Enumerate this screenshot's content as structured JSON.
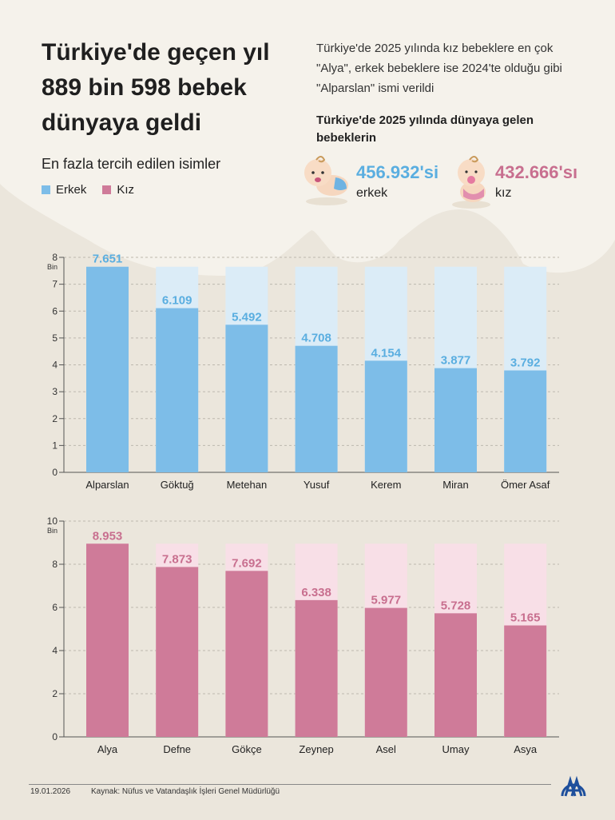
{
  "header": {
    "title": "Türkiye'de geçen yıl 889 bin 598 bebek dünyaya geldi",
    "intro": "Türkiye'de 2025 yılında kız bebeklere en çok \"Alya\", erkek bebeklere ise 2024'te olduğu gibi \"Alparslan\" ismi verildi",
    "subtitle": "Türkiye'de 2025 yılında dünyaya gelen bebeklerin",
    "section_label": "En fazla tercih edilen isimler"
  },
  "legend": {
    "boys": "Erkek",
    "girls": "Kız"
  },
  "stats": {
    "boys_value": "456.932'si",
    "boys_label": "erkek",
    "girls_value": "432.666'sı",
    "girls_label": "kız"
  },
  "colors": {
    "boys": "#7dbde8",
    "boys_bg": "#dbecf7",
    "boys_text": "#5aaee0",
    "girls": "#cf7b99",
    "girls_bg": "#f8dfe7",
    "girls_text": "#c86f8f"
  },
  "chart_data": [
    {
      "type": "bar",
      "series_name": "Erkek",
      "categories": [
        "Alparslan",
        "Göktuğ",
        "Metehan",
        "Yusuf",
        "Kerem",
        "Miran",
        "Ömer Asaf"
      ],
      "values": [
        7.651,
        6.109,
        5.492,
        4.708,
        4.154,
        3.877,
        3.792
      ],
      "labels": [
        "7.651",
        "6.109",
        "5.492",
        "4.708",
        "4.154",
        "3.877",
        "3.792"
      ],
      "ylabel": "Bin",
      "ylim": [
        0,
        8
      ],
      "yticks": [
        0,
        1,
        2,
        3,
        4,
        5,
        6,
        7,
        8
      ],
      "grid": true
    },
    {
      "type": "bar",
      "series_name": "Kız",
      "categories": [
        "Alya",
        "Defne",
        "Gökçe",
        "Zeynep",
        "Asel",
        "Umay",
        "Asya"
      ],
      "values": [
        8.953,
        7.873,
        7.692,
        6.338,
        5.977,
        5.728,
        5.165
      ],
      "labels": [
        "8.953",
        "7.873",
        "7.692",
        "6.338",
        "5.977",
        "5.728",
        "5.165"
      ],
      "ylabel": "Bin",
      "ylim": [
        0,
        10
      ],
      "yticks": [
        0,
        2,
        4,
        6,
        8,
        10
      ],
      "grid": true
    }
  ],
  "footer": {
    "date": "19.01.2026",
    "source": "Kaynak: Nüfus ve Vatandaşlık İşleri Genel Müdürlüğü",
    "logo_text": "AA"
  }
}
